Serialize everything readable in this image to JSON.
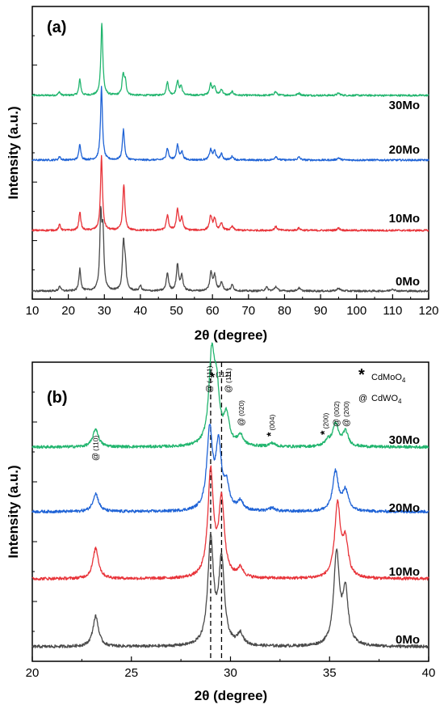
{
  "chart_data": [
    {
      "panel": "(a)",
      "type": "line",
      "xlabel": "2θ (degree)",
      "ylabel": "Intensity (a.u.)",
      "xlim": [
        10,
        120
      ],
      "xticks": [
        "10",
        "20",
        "30",
        "40",
        "50",
        "60",
        "70",
        "80",
        "90",
        "100",
        "110",
        "120"
      ],
      "colors": {
        "30Mo": "#21b56e",
        "20Mo": "#1f63d6",
        "10Mo": "#e8343a",
        "0Mo": "#4a4a4a"
      },
      "series": [
        {
          "name": "30Mo",
          "offset": 3,
          "peaks": [
            [
              17.5,
              0.05
            ],
            [
              23.2,
              0.22
            ],
            [
              29.3,
              1.0
            ],
            [
              35.2,
              0.27
            ],
            [
              35.8,
              0.18
            ],
            [
              47.5,
              0.18
            ],
            [
              50.3,
              0.19
            ],
            [
              51.3,
              0.12
            ],
            [
              59.5,
              0.15
            ],
            [
              60.5,
              0.12
            ],
            [
              62.5,
              0.08
            ],
            [
              65.5,
              0.05
            ],
            [
              77.5,
              0.05
            ],
            [
              84,
              0.03
            ],
            [
              95,
              0.03
            ]
          ]
        },
        {
          "name": "20Mo",
          "offset": 2,
          "peaks": [
            [
              17.6,
              0.05
            ],
            [
              23.2,
              0.22
            ],
            [
              29.2,
              1.0
            ],
            [
              35.3,
              0.42
            ],
            [
              47.5,
              0.16
            ],
            [
              50.3,
              0.2
            ],
            [
              51.5,
              0.11
            ],
            [
              59.5,
              0.14
            ],
            [
              60.6,
              0.12
            ],
            [
              62.5,
              0.08
            ],
            [
              65.5,
              0.05
            ],
            [
              77.6,
              0.05
            ],
            [
              84,
              0.04
            ],
            [
              95,
              0.03
            ]
          ]
        },
        {
          "name": "10Mo",
          "offset": 1,
          "peaks": [
            [
              17.6,
              0.08
            ],
            [
              23.2,
              0.25
            ],
            [
              29.2,
              1.0
            ],
            [
              35.4,
              0.62
            ],
            [
              47.5,
              0.2
            ],
            [
              50.3,
              0.28
            ],
            [
              51.5,
              0.16
            ],
            [
              59.5,
              0.19
            ],
            [
              60.6,
              0.15
            ],
            [
              62.5,
              0.09
            ],
            [
              65.5,
              0.05
            ],
            [
              77.6,
              0.05
            ],
            [
              84,
              0.03
            ],
            [
              95,
              0.03
            ]
          ]
        },
        {
          "name": "0Mo",
          "offset": 0,
          "peaks": [
            [
              17.6,
              0.07
            ],
            [
              23.2,
              0.3
            ],
            [
              29.0,
              0.95
            ],
            [
              29.6,
              0.75
            ],
            [
              35.3,
              0.62
            ],
            [
              35.8,
              0.3
            ],
            [
              40,
              0.07
            ],
            [
              47.5,
              0.24
            ],
            [
              50.3,
              0.35
            ],
            [
              51.5,
              0.2
            ],
            [
              59.6,
              0.24
            ],
            [
              60.6,
              0.2
            ],
            [
              62.5,
              0.12
            ],
            [
              65.5,
              0.08
            ],
            [
              75,
              0.05
            ],
            [
              77.6,
              0.06
            ],
            [
              84,
              0.04
            ],
            [
              95,
              0.04
            ],
            [
              110,
              0.03
            ]
          ]
        }
      ]
    },
    {
      "panel": "(b)",
      "type": "line",
      "xlabel": "2θ (degree)",
      "ylabel": "Intensity (a.u.)",
      "xlim": [
        20,
        40
      ],
      "xticks": [
        "20",
        "25",
        "30",
        "35",
        "40"
      ],
      "vlines": [
        29.0,
        29.55
      ],
      "colors": {
        "30Mo": "#21b56e",
        "20Mo": "#1f63d6",
        "10Mo": "#e8343a",
        "0Mo": "#4a4a4a"
      },
      "legend": [
        {
          "symbol": "*",
          "label": "CdMoO",
          "sub": "4"
        },
        {
          "symbol": "@",
          "label": "CdWO",
          "sub": "4"
        }
      ],
      "annotations": [
        {
          "x": 23.2,
          "symbol": "@",
          "text": "(110)",
          "vertical": true
        },
        {
          "x": 28.95,
          "symbol": "@",
          "text": "(-111)",
          "vertical": true
        },
        {
          "x": 29.2,
          "symbol": "*",
          "text": "(112)",
          "vertical": false
        },
        {
          "x": 29.9,
          "symbol": "@",
          "text": "(111)",
          "vertical": true
        },
        {
          "x": 30.55,
          "symbol": "@",
          "text": "(020)",
          "vertical": true
        },
        {
          "x": 32.1,
          "symbol": "*",
          "text": "(004)",
          "vertical": true
        },
        {
          "x": 34.8,
          "symbol": "*",
          "text": "(200)",
          "vertical": true
        },
        {
          "x": 35.35,
          "symbol": "@",
          "text": "(002)",
          "vertical": true
        },
        {
          "x": 35.85,
          "symbol": "@",
          "text": "(200)",
          "vertical": true
        }
      ],
      "series": [
        {
          "name": "30Mo",
          "offset": 3,
          "peaks": [
            [
              23.2,
              0.16
            ],
            [
              29.05,
              0.75
            ],
            [
              29.3,
              0.45
            ],
            [
              29.8,
              0.25
            ],
            [
              30.5,
              0.09
            ],
            [
              32.1,
              0.03
            ],
            [
              34.9,
              0.05
            ],
            [
              35.3,
              0.2
            ],
            [
              35.8,
              0.13
            ]
          ]
        },
        {
          "name": "20Mo",
          "offset": 2,
          "peaks": [
            [
              23.2,
              0.16
            ],
            [
              28.95,
              0.7
            ],
            [
              29.4,
              0.55
            ],
            [
              29.8,
              0.2
            ],
            [
              30.5,
              0.08
            ],
            [
              32.1,
              0.03
            ],
            [
              35.3,
              0.35
            ],
            [
              35.8,
              0.18
            ]
          ]
        },
        {
          "name": "10Mo",
          "offset": 1,
          "peaks": [
            [
              23.2,
              0.26
            ],
            [
              29.0,
              0.9
            ],
            [
              29.55,
              0.65
            ],
            [
              30.5,
              0.08
            ],
            [
              35.4,
              0.62
            ],
            [
              35.8,
              0.3
            ]
          ]
        },
        {
          "name": "0Mo",
          "offset": 0,
          "peaks": [
            [
              23.2,
              0.26
            ],
            [
              29.0,
              0.9
            ],
            [
              29.55,
              0.72
            ],
            [
              30.5,
              0.1
            ],
            [
              35.35,
              0.78
            ],
            [
              35.8,
              0.45
            ]
          ]
        }
      ]
    }
  ]
}
